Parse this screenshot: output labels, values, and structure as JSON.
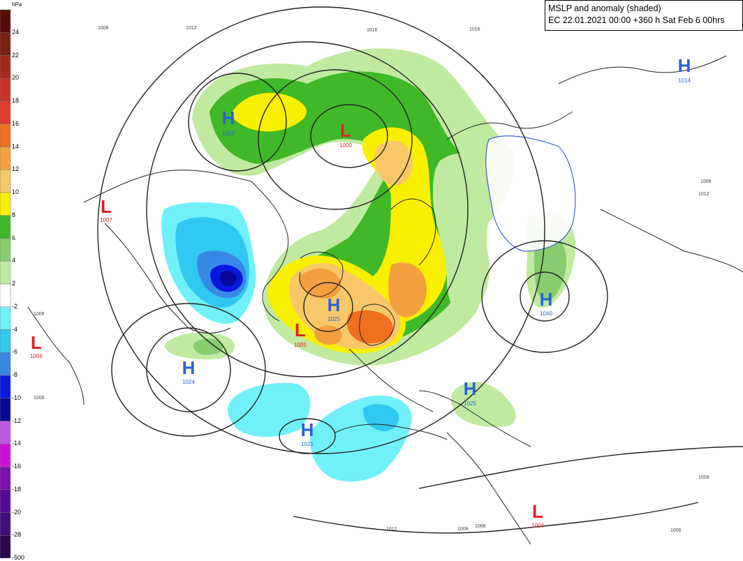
{
  "title": {
    "line1": "MSLP and anomaly (shaded)",
    "line2": "EC 22.01.2021 00:00 +360 h Sat Feb 6 00hrs"
  },
  "legend": {
    "unit": "hPa",
    "entries": [
      {
        "label": "24",
        "color": "#5a0a0a"
      },
      {
        "label": "22",
        "color": "#7d1e12"
      },
      {
        "label": "20",
        "color": "#a22a1a"
      },
      {
        "label": "18",
        "color": "#c83222"
      },
      {
        "label": "16",
        "color": "#e8382a"
      },
      {
        "label": "14",
        "color": "#f07020"
      },
      {
        "label": "12",
        "color": "#f5a040"
      },
      {
        "label": "10",
        "color": "#f8c868"
      },
      {
        "label": "8",
        "color": "#f8f000"
      },
      {
        "label": "6",
        "color": "#40b828"
      },
      {
        "label": "4",
        "color": "#88cc70"
      },
      {
        "label": "2",
        "color": "#c0eaa0"
      },
      {
        "label": "-2",
        "color": "#ffffff"
      },
      {
        "label": "-4",
        "color": "#70f0f8"
      },
      {
        "label": "-6",
        "color": "#30c8f0"
      },
      {
        "label": "-8",
        "color": "#3888e8"
      },
      {
        "label": "-10",
        "color": "#0818e0"
      },
      {
        "label": "-12",
        "color": "#080898"
      },
      {
        "label": "-14",
        "color": "#c058e8"
      },
      {
        "label": "-16",
        "color": "#d010d8"
      },
      {
        "label": "-18",
        "color": "#8010b0"
      },
      {
        "label": "-20",
        "color": "#580898"
      },
      {
        "label": "-28",
        "color": "#401078"
      },
      {
        "label": "-500",
        "color": "#280850"
      }
    ]
  },
  "centers": [
    {
      "type": "H",
      "value": "1026",
      "color": "#2a62d8"
    },
    {
      "type": "L",
      "value": "1000",
      "color": "#e02020"
    },
    {
      "type": "H",
      "value": "1014",
      "color": "#2a62d8"
    },
    {
      "type": "L",
      "value": "1007",
      "color": "#e02020"
    },
    {
      "type": "H",
      "value": "1025",
      "color": "#2a62d8"
    },
    {
      "type": "L",
      "value": "1005",
      "color": "#e02020"
    },
    {
      "type": "L",
      "value": "1006",
      "color": "#e02020"
    },
    {
      "type": "H",
      "value": "1024",
      "color": "#2a62d8"
    },
    {
      "type": "H",
      "value": "1040",
      "color": "#2a62d8"
    },
    {
      "type": "H",
      "value": "1025",
      "color": "#2a62d8"
    },
    {
      "type": "H",
      "value": "1021",
      "color": "#2a62d8"
    },
    {
      "type": "L",
      "value": "1004",
      "color": "#e02020"
    }
  ],
  "isobar_labels": [
    "1008",
    "1012",
    "1016",
    "1016",
    "1012",
    "1008",
    "1008",
    "1012",
    "1008",
    "1008",
    "1008",
    "1008",
    "1008"
  ]
}
